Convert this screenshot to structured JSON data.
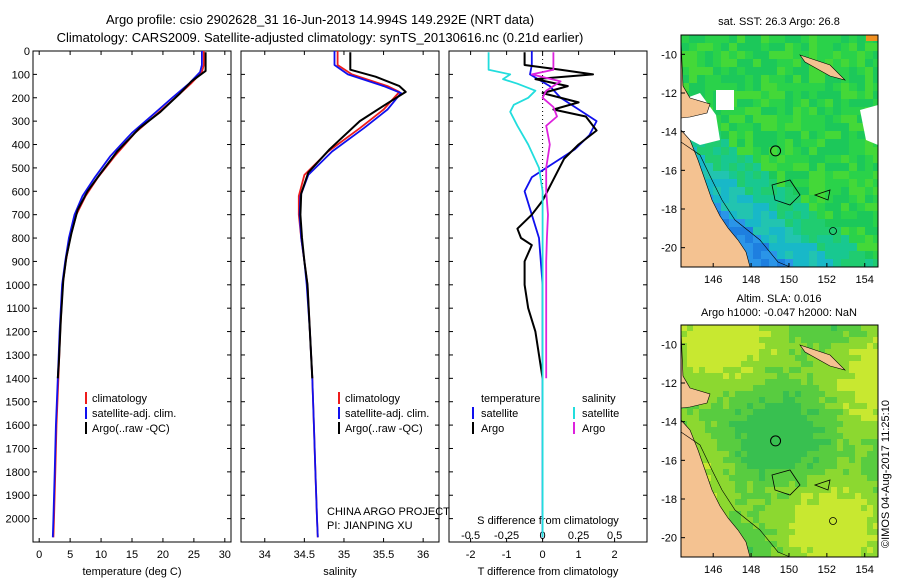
{
  "header": {
    "title_line1": "Argo profile: csio 2902628_31 16-Jun-2013 14.994S 149.292E (NRT data)",
    "title_line2": "Climatology: CARS2009. Satellite-adjusted climatology: synTS_20130616.nc (0.21d earlier)"
  },
  "colors": {
    "climatology": "#ee1c1c",
    "satellite": "#1010ee",
    "argo": "#000000",
    "sat_salinity": "#22dddd",
    "argo_salinity": "#dd22dd",
    "land": "#f4c291"
  },
  "legend_ts": {
    "climatology": "climatology",
    "satellite": "satellite-adj. clim.",
    "argo": "Argo(..raw -QC)"
  },
  "legend_diff": {
    "temp_header": "temperature",
    "sal_header": "salinity",
    "satellite": "satellite",
    "argo": "Argo"
  },
  "project": {
    "line1": "CHINA ARGO PROJECT",
    "line2": "PI: JIANPING XU"
  },
  "map_top": {
    "title": "sat. SST: 26.3 Argo: 26.8"
  },
  "map_bottom": {
    "title_line1": "Altim. SLA: 0.016",
    "title_line2": "Argo h1000: -0.047 h2000: NaN"
  },
  "stamp": "©IMOS 04-Aug-2017 11:25:10",
  "chart_data": [
    {
      "type": "line",
      "name": "temperature profile",
      "xlabel": "temperature (deg C)",
      "ylabel": "",
      "xlim": [
        -1,
        31
      ],
      "ylim": [
        2100,
        0
      ],
      "xticks": [
        0,
        5,
        10,
        15,
        20,
        25,
        30
      ],
      "yticks": [
        0,
        100,
        200,
        300,
        400,
        500,
        600,
        700,
        800,
        900,
        1000,
        1100,
        1200,
        1300,
        1400,
        1500,
        1600,
        1700,
        1800,
        1900,
        2000
      ],
      "series": [
        {
          "name": "climatology",
          "color": "#ee1c1c",
          "points": [
            [
              26.6,
              0
            ],
            [
              26.6,
              60
            ],
            [
              26.3,
              90
            ],
            [
              24.5,
              140
            ],
            [
              22,
              200
            ],
            [
              19,
              270
            ],
            [
              15.5,
              350
            ],
            [
              12.2,
              450
            ],
            [
              9.5,
              540
            ],
            [
              7.5,
              620
            ],
            [
              6,
              700
            ],
            [
              5,
              800
            ],
            [
              4.3,
              900
            ],
            [
              3.8,
              1000
            ],
            [
              3.4,
              1200
            ],
            [
              3.1,
              1400
            ],
            [
              2.8,
              1600
            ],
            [
              2.6,
              1800
            ],
            [
              2.4,
              2000
            ],
            [
              2.3,
              2080
            ]
          ]
        },
        {
          "name": "satellite",
          "color": "#1010ee",
          "points": [
            [
              26.3,
              0
            ],
            [
              26.3,
              60
            ],
            [
              26,
              90
            ],
            [
              24.2,
              140
            ],
            [
              21.5,
              200
            ],
            [
              18.5,
              270
            ],
            [
              15,
              350
            ],
            [
              11.5,
              450
            ],
            [
              9,
              540
            ],
            [
              7,
              620
            ],
            [
              5.7,
              700
            ],
            [
              4.8,
              800
            ],
            [
              4.2,
              900
            ],
            [
              3.7,
              1000
            ],
            [
              3.3,
              1200
            ],
            [
              3,
              1400
            ],
            [
              2.7,
              1600
            ],
            [
              2.5,
              1800
            ],
            [
              2.3,
              2000
            ],
            [
              2.2,
              2080
            ]
          ]
        },
        {
          "name": "Argo",
          "color": "#000000",
          "points": [
            [
              26.9,
              5
            ],
            [
              26.9,
              85
            ],
            [
              24.6,
              130
            ],
            [
              22.8,
              180
            ],
            [
              19.6,
              260
            ],
            [
              16.2,
              330
            ],
            [
              12.6,
              430
            ],
            [
              10,
              520
            ],
            [
              7.8,
              600
            ],
            [
              6.2,
              680
            ],
            [
              5.2,
              780
            ],
            [
              4.4,
              880
            ],
            [
              3.9,
              980
            ],
            [
              3.5,
              1150
            ],
            [
              3.2,
              1320
            ],
            [
              3,
              1400
            ]
          ]
        }
      ]
    },
    {
      "type": "line",
      "name": "salinity profile",
      "xlabel": "salinity",
      "ylabel": "",
      "xlim": [
        33.7,
        36.2
      ],
      "ylim": [
        2100,
        0
      ],
      "xticks": [
        34,
        34.5,
        35,
        35.5,
        36
      ],
      "series": [
        {
          "name": "climatology",
          "color": "#ee1c1c",
          "points": [
            [
              34.92,
              0
            ],
            [
              34.92,
              60
            ],
            [
              35.1,
              100
            ],
            [
              35.55,
              150
            ],
            [
              35.7,
              175
            ],
            [
              35.5,
              250
            ],
            [
              35.2,
              330
            ],
            [
              34.8,
              430
            ],
            [
              34.5,
              530
            ],
            [
              34.43,
              620
            ],
            [
              34.43,
              700
            ],
            [
              34.46,
              800
            ],
            [
              34.5,
              900
            ],
            [
              34.54,
              1000
            ],
            [
              34.57,
              1200
            ],
            [
              34.6,
              1400
            ],
            [
              34.62,
              1600
            ],
            [
              34.64,
              1800
            ],
            [
              34.66,
              2000
            ],
            [
              34.67,
              2080
            ]
          ]
        },
        {
          "name": "satellite",
          "color": "#1010ee",
          "points": [
            [
              34.88,
              0
            ],
            [
              34.88,
              60
            ],
            [
              35.05,
              100
            ],
            [
              35.5,
              150
            ],
            [
              35.72,
              180
            ],
            [
              35.55,
              250
            ],
            [
              35.25,
              330
            ],
            [
              34.85,
              430
            ],
            [
              34.55,
              530
            ],
            [
              34.45,
              620
            ],
            [
              34.44,
              700
            ],
            [
              34.46,
              800
            ],
            [
              34.5,
              900
            ],
            [
              34.53,
              1000
            ],
            [
              34.57,
              1200
            ],
            [
              34.6,
              1400
            ],
            [
              34.62,
              1600
            ],
            [
              34.64,
              1800
            ],
            [
              34.66,
              2000
            ],
            [
              34.67,
              2080
            ]
          ]
        },
        {
          "name": "Argo",
          "color": "#000000",
          "points": [
            [
              35.08,
              5
            ],
            [
              35.08,
              80
            ],
            [
              35.4,
              110
            ],
            [
              35.7,
              150
            ],
            [
              35.78,
              175
            ],
            [
              35.52,
              230
            ],
            [
              35.2,
              300
            ],
            [
              34.82,
              420
            ],
            [
              34.55,
              520
            ],
            [
              34.46,
              610
            ],
            [
              34.45,
              700
            ],
            [
              34.47,
              800
            ],
            [
              34.5,
              900
            ],
            [
              34.54,
              1000
            ],
            [
              34.57,
              1200
            ],
            [
              34.6,
              1400
            ]
          ]
        }
      ]
    },
    {
      "type": "line",
      "name": "difference from climatology",
      "xlabel": "T difference from climatology",
      "xlabel_top": "S difference from climatology",
      "xlim": [
        -2.6,
        2.9
      ],
      "ylim": [
        2100,
        0
      ],
      "xticks": [
        -2,
        -1,
        0,
        1,
        2
      ],
      "top_xticks": [
        "-0.5",
        "-0.25",
        "0",
        "0.25",
        "0.5"
      ],
      "series": [
        {
          "name": "temperature satellite",
          "color": "#1010ee",
          "points": [
            [
              -0.3,
              0
            ],
            [
              -0.3,
              60
            ],
            [
              -0.35,
              100
            ],
            [
              0.2,
              150
            ],
            [
              0.5,
              200
            ],
            [
              1.1,
              260
            ],
            [
              1.5,
              300
            ],
            [
              1.3,
              360
            ],
            [
              0.9,
              420
            ],
            [
              0.3,
              480
            ],
            [
              -0.3,
              540
            ],
            [
              -0.5,
              600
            ],
            [
              -0.3,
              700
            ],
            [
              -0.1,
              800
            ],
            [
              0,
              1000
            ],
            [
              0,
              2080
            ]
          ]
        },
        {
          "name": "temperature Argo",
          "color": "#000000",
          "points": [
            [
              -0.5,
              5
            ],
            [
              -0.5,
              60
            ],
            [
              0.5,
              80
            ],
            [
              1.4,
              100
            ],
            [
              -0.2,
              120
            ],
            [
              0.7,
              150
            ],
            [
              0,
              180
            ],
            [
              1,
              220
            ],
            [
              0.3,
              250
            ],
            [
              1.2,
              280
            ],
            [
              1.5,
              340
            ],
            [
              1,
              400
            ],
            [
              0.6,
              460
            ],
            [
              0.4,
              520
            ],
            [
              0.2,
              580
            ],
            [
              0,
              640
            ],
            [
              -0.3,
              700
            ],
            [
              -0.7,
              760
            ],
            [
              -0.6,
              800
            ],
            [
              -0.3,
              830
            ],
            [
              -0.5,
              900
            ],
            [
              -0.5,
              1000
            ],
            [
              -0.4,
              1100
            ],
            [
              -0.2,
              1200
            ],
            [
              -0.1,
              1300
            ],
            [
              0,
              1400
            ]
          ]
        },
        {
          "name": "salinity satellite",
          "color": "#22dddd",
          "points": [
            [
              -1.5,
              5
            ],
            [
              -1.5,
              80
            ],
            [
              -0.9,
              100
            ],
            [
              -1.1,
              120
            ],
            [
              -0.7,
              140
            ],
            [
              -0.2,
              170
            ],
            [
              -0.4,
              200
            ],
            [
              -0.8,
              230
            ],
            [
              -0.9,
              260
            ],
            [
              -0.7,
              320
            ],
            [
              -0.4,
              400
            ],
            [
              -0.1,
              500
            ],
            [
              0,
              600
            ],
            [
              0,
              2080
            ]
          ]
        },
        {
          "name": "salinity Argo",
          "color": "#dd22dd",
          "points": [
            [
              0.3,
              5
            ],
            [
              0.3,
              80
            ],
            [
              -0.3,
              100
            ],
            [
              0.5,
              130
            ],
            [
              0.1,
              170
            ],
            [
              0,
              200
            ],
            [
              0.3,
              240
            ],
            [
              0.4,
              280
            ],
            [
              0.1,
              320
            ],
            [
              0.2,
              400
            ],
            [
              0.1,
              500
            ],
            [
              0.1,
              600
            ],
            [
              0.15,
              700
            ],
            [
              0.12,
              800
            ],
            [
              0.1,
              900
            ],
            [
              0.1,
              1000
            ],
            [
              0.1,
              1200
            ],
            [
              0.1,
              1400
            ]
          ]
        }
      ]
    },
    {
      "type": "heatmap",
      "name": "sat SST map",
      "title": "sat. SST: 26.3 Argo: 26.8",
      "xlim": [
        144.3,
        154.7
      ],
      "ylim": [
        -21,
        -9
      ],
      "xticks": [
        146,
        148,
        150,
        152,
        154
      ],
      "yticks": [
        -10,
        -12,
        -14,
        -16,
        -18,
        -20
      ],
      "marker": {
        "lon": 149.292,
        "lat": -14.994
      }
    },
    {
      "type": "heatmap",
      "name": "altimetry SLA map",
      "title": "Altim. SLA: 0.016 / Argo h1000: -0.047 h2000: NaN",
      "xlim": [
        144.3,
        154.7
      ],
      "ylim": [
        -21,
        -9
      ],
      "xticks": [
        146,
        148,
        150,
        152,
        154
      ],
      "yticks": [
        -10,
        -12,
        -14,
        -16,
        -18,
        -20
      ],
      "marker": {
        "lon": 149.292,
        "lat": -14.994
      }
    }
  ]
}
